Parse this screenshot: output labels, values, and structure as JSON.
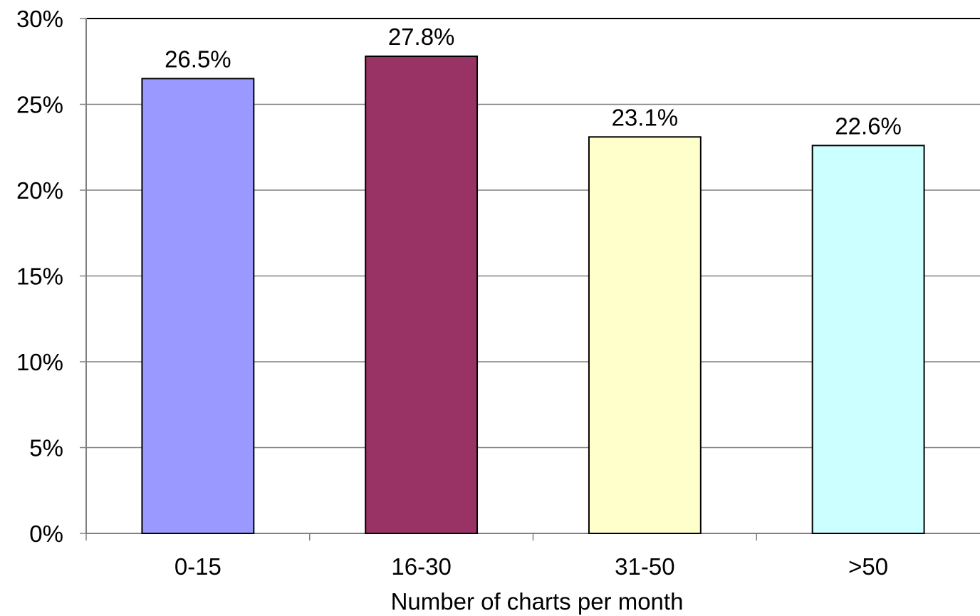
{
  "chart_data": {
    "type": "bar",
    "title": "",
    "xlabel": "Number of charts per month",
    "ylabel": "",
    "categories": [
      "0-15",
      "16-30",
      "31-50",
      ">50"
    ],
    "values": [
      26.5,
      27.8,
      23.1,
      22.6
    ],
    "data_labels": [
      "26.5%",
      "27.8%",
      "23.1%",
      "22.6%"
    ],
    "bar_colors": [
      "#9999ff",
      "#993366",
      "#ffffcc",
      "#ccffff"
    ],
    "ylim": [
      0,
      30
    ],
    "yticks": [
      0,
      5,
      10,
      15,
      20,
      25,
      30
    ],
    "ytick_labels": [
      "0%",
      "5%",
      "10%",
      "15%",
      "20%",
      "25%",
      "30%"
    ],
    "grid": true,
    "legend": "none"
  }
}
